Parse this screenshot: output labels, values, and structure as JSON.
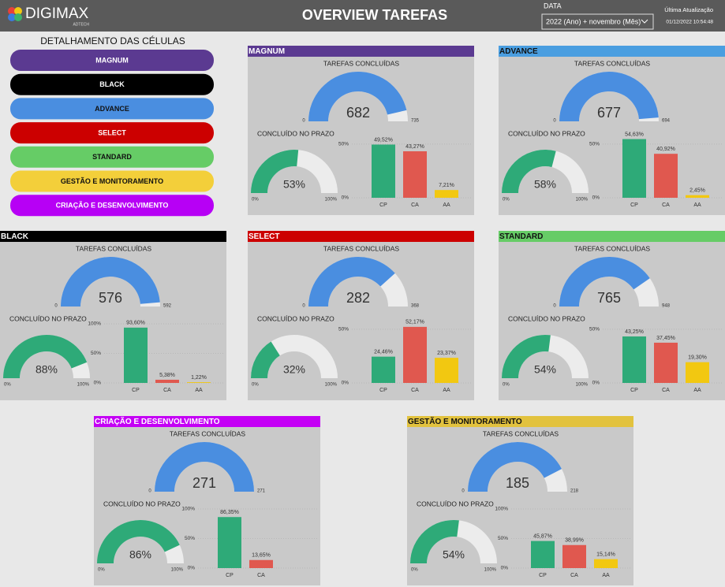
{
  "header": {
    "logo": "DIGIMAX",
    "logo_sub": "ADTECH",
    "title": "OVERVIEW TAREFAS",
    "date_label": "DATA",
    "date_filter": "2022 (Ano) + novembro (Mês)",
    "update_label": "Última Atualização",
    "update_value": "01/12/2022 10:54:48"
  },
  "sidebar": {
    "title": "DETALHAMENTO DAS CÉLULAS",
    "buttons": [
      {
        "label": "MAGNUM",
        "color": "#5b3a91"
      },
      {
        "label": "BLACK",
        "color": "#000000"
      },
      {
        "label": "ADVANCE",
        "color": "#4a8ee0"
      },
      {
        "label": "SELECT",
        "color": "#cc0000"
      },
      {
        "label": "STANDARD",
        "color": "#66cc66"
      },
      {
        "label": "GESTÃO E MONITORAMENTO",
        "color": "#f3cf3a"
      },
      {
        "label": "CRIAÇÃO E DESENVOLVIMENTO",
        "color": "#b700f5"
      }
    ]
  },
  "panels": [
    {
      "title": "MAGNUM",
      "color": "#5b3a91",
      "done_label": "TAREFAS CONCLUÍDAS",
      "done": {
        "value": 682,
        "min": 0,
        "max": 735
      },
      "prazo_label": "CONCLUÍDO NO PRAZO",
      "prazo": {
        "value": 53,
        "label": "53%",
        "min": {
          "value": 0,
          "label": "0%"
        },
        "max": {
          "value": 100,
          "label": "100%"
        }
      },
      "bars": {
        "categories": [
          "CP",
          "CA",
          "AA"
        ],
        "values": [
          49.52,
          43.27,
          7.21
        ],
        "value_labels": [
          "49,52%",
          "43,27%",
          "7,21%"
        ],
        "colors": [
          "#2eaa78",
          "#e0584f",
          "#f2c811"
        ],
        "ylim": [
          0,
          55
        ],
        "yticks": [
          {
            "value": 0,
            "label": "0%"
          },
          {
            "value": 50,
            "label": "50%"
          }
        ]
      }
    },
    {
      "title": "ADVANCE",
      "color": "#4a9ee0",
      "done_label": "TAREFAS CONCLUÍDAS",
      "done": {
        "value": 677,
        "min": 0,
        "max": 694
      },
      "prazo_label": "CONCLUÍDO NO PRAZO",
      "prazo": {
        "value": 58,
        "label": "58%",
        "min": {
          "value": 0,
          "label": "0%"
        },
        "max": {
          "value": 100,
          "label": "100%"
        }
      },
      "bars": {
        "categories": [
          "CP",
          "CA",
          "AA"
        ],
        "values": [
          54.63,
          40.92,
          2.45
        ],
        "value_labels": [
          "54,63%",
          "40,92%",
          "2,45%"
        ],
        "colors": [
          "#2eaa78",
          "#e0584f",
          "#f2c811"
        ],
        "ylim": [
          0,
          55
        ],
        "yticks": [
          {
            "value": 0,
            "label": "0%"
          },
          {
            "value": 50,
            "label": "50%"
          }
        ]
      }
    },
    {
      "title": "BLACK",
      "color": "#000000",
      "done_label": "TAREFAS CONCLUÍDAS",
      "done": {
        "value": 576,
        "min": 0,
        "max": 592
      },
      "prazo_label": "CONCLUÍDO NO PRAZO",
      "prazo": {
        "value": 88,
        "label": "88%",
        "min": {
          "value": 0,
          "label": "0%"
        },
        "max": {
          "value": 100,
          "label": "100%"
        }
      },
      "bars": {
        "categories": [
          "CP",
          "CA",
          "AA"
        ],
        "values": [
          93.6,
          5.38,
          1.22
        ],
        "value_labels": [
          "93,60%",
          "5,38%",
          "1,22%"
        ],
        "colors": [
          "#2eaa78",
          "#e0584f",
          "#f2c811"
        ],
        "ylim": [
          0,
          100
        ],
        "yticks": [
          {
            "value": 0,
            "label": "0%"
          },
          {
            "value": 50,
            "label": "50%"
          },
          {
            "value": 100,
            "label": "100%"
          }
        ]
      }
    },
    {
      "title": "SELECT",
      "color": "#cc0000",
      "done_label": "TAREFAS CONCLUÍDAS",
      "done": {
        "value": 282,
        "min": 0,
        "max": 368
      },
      "prazo_label": "CONCLUÍDO NO PRAZO",
      "prazo": {
        "value": 32,
        "label": "32%",
        "min": {
          "value": 0,
          "label": "0%"
        },
        "max": {
          "value": 100,
          "label": "100%"
        }
      },
      "bars": {
        "categories": [
          "CP",
          "CA",
          "AA"
        ],
        "values": [
          24.46,
          52.17,
          23.37
        ],
        "value_labels": [
          "24,46%",
          "52,17%",
          "23,37%"
        ],
        "colors": [
          "#2eaa78",
          "#e0584f",
          "#f2c811"
        ],
        "ylim": [
          0,
          55
        ],
        "yticks": [
          {
            "value": 0,
            "label": "0%"
          },
          {
            "value": 50,
            "label": "50%"
          }
        ]
      }
    },
    {
      "title": "STANDARD",
      "color": "#66cc66",
      "done_label": "TAREFAS CONCLUÍDAS",
      "done": {
        "value": 765,
        "min": 0,
        "max": 948
      },
      "prazo_label": "CONCLUÍDO NO PRAZO",
      "prazo": {
        "value": 54,
        "label": "54%",
        "min": {
          "value": 0,
          "label": "0%"
        },
        "max": {
          "value": 100,
          "label": "100%"
        }
      },
      "bars": {
        "categories": [
          "CP",
          "CA",
          "AA"
        ],
        "values": [
          43.25,
          37.45,
          19.3
        ],
        "value_labels": [
          "43,25%",
          "37,45%",
          "19,30%"
        ],
        "colors": [
          "#2eaa78",
          "#e0584f",
          "#f2c811"
        ],
        "ylim": [
          0,
          55
        ],
        "yticks": [
          {
            "value": 0,
            "label": "0%"
          },
          {
            "value": 50,
            "label": "50%"
          }
        ]
      }
    },
    {
      "title": "CRIAÇÃO E DESENVOLVIMENTO",
      "color": "#c400f5",
      "done_label": "TAREFAS CONCLUÍDAS",
      "done": {
        "value": 271,
        "min": 0,
        "max": 271
      },
      "prazo_label": "CONCLUÍDO NO PRAZO",
      "prazo": {
        "value": 86,
        "label": "86%",
        "min": {
          "value": 0,
          "label": "0%"
        },
        "max": {
          "value": 100,
          "label": "100%"
        }
      },
      "bars": {
        "categories": [
          "CP",
          "CA"
        ],
        "values": [
          86.35,
          13.65
        ],
        "value_labels": [
          "86,35%",
          "13,65%"
        ],
        "colors": [
          "#2eaa78",
          "#e0584f"
        ],
        "ylim": [
          0,
          100
        ],
        "yticks": [
          {
            "value": 0,
            "label": "0%"
          },
          {
            "value": 50,
            "label": "50%"
          },
          {
            "value": 100,
            "label": "100%"
          }
        ]
      }
    },
    {
      "title": "GESTÃO E MONITORAMENTO",
      "color": "#e2c23e",
      "done_label": "TAREFAS CONCLUÍDAS",
      "done": {
        "value": 185,
        "min": 0,
        "max": 218
      },
      "prazo_label": "CONCLUÍDO NO PRAZO",
      "prazo": {
        "value": 54,
        "label": "54%",
        "min": {
          "value": 0,
          "label": "0%"
        },
        "max": {
          "value": 100,
          "label": "100%"
        }
      },
      "bars": {
        "categories": [
          "CP",
          "CA",
          "AA"
        ],
        "values": [
          45.87,
          38.99,
          15.14
        ],
        "value_labels": [
          "45,87%",
          "38,99%",
          "15,14%"
        ],
        "colors": [
          "#2eaa78",
          "#e0584f",
          "#f2c811"
        ],
        "ylim": [
          0,
          100
        ],
        "yticks": [
          {
            "value": 0,
            "label": "0%"
          },
          {
            "value": 50,
            "label": "50%"
          },
          {
            "value": 100,
            "label": "100%"
          }
        ]
      }
    }
  ]
}
